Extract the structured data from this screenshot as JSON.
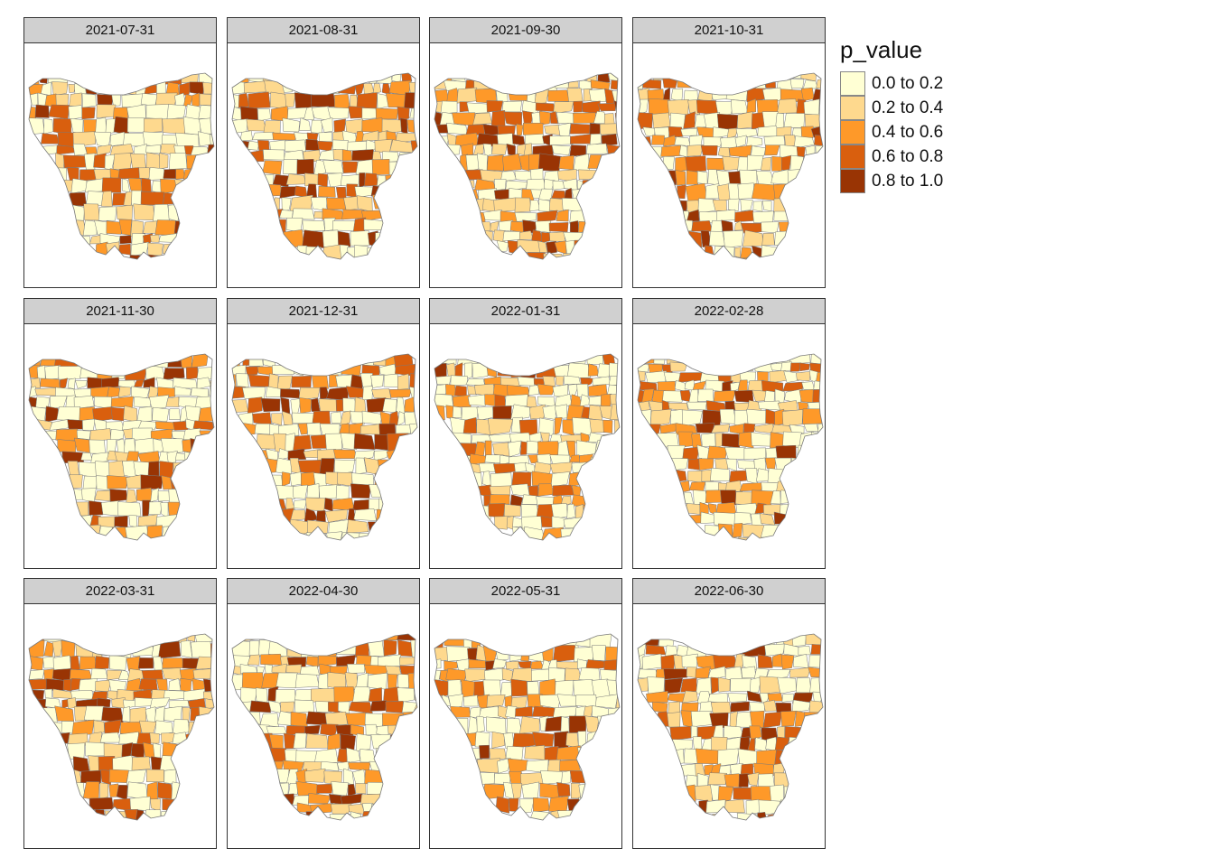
{
  "legend": {
    "title": "p_value",
    "items": [
      {
        "label": "0.0 to 0.2",
        "color": "#ffffd4"
      },
      {
        "label": "0.2 to 0.4",
        "color": "#fed98e"
      },
      {
        "label": "0.4 to 0.6",
        "color": "#fe9929"
      },
      {
        "label": "0.6 to 0.8",
        "color": "#d95f0e"
      },
      {
        "label": "0.8 to 1.0",
        "color": "#993404"
      }
    ]
  },
  "panels": [
    {
      "date": "2021-07-31"
    },
    {
      "date": "2021-08-31"
    },
    {
      "date": "2021-09-30"
    },
    {
      "date": "2021-10-31"
    },
    {
      "date": "2021-11-30"
    },
    {
      "date": "2021-12-31"
    },
    {
      "date": "2022-01-31"
    },
    {
      "date": "2022-02-28"
    },
    {
      "date": "2022-03-31"
    },
    {
      "date": "2022-04-30"
    },
    {
      "date": "2022-05-31"
    },
    {
      "date": "2022-06-30"
    }
  ],
  "colors": {
    "border": "#333333",
    "header_bg": "#d0d0d0",
    "region_outline": "#7a7a7a"
  }
}
